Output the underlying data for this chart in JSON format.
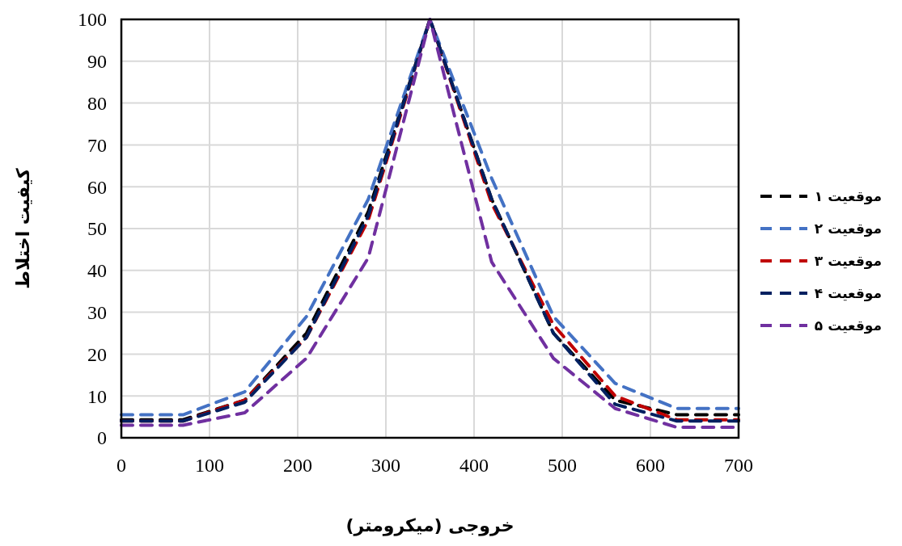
{
  "chart_data": {
    "type": "line",
    "xlabel": "خروجی (میکرومتر)",
    "ylabel": "کیفیت اختلاط",
    "x": [
      0,
      70,
      140,
      210,
      280,
      350,
      420,
      490,
      560,
      630,
      700
    ],
    "xlim": [
      0,
      700
    ],
    "xticks": [
      0,
      100,
      200,
      300,
      400,
      500,
      600,
      700
    ],
    "ylim": [
      0,
      100
    ],
    "yticks": [
      0,
      10,
      20,
      30,
      40,
      50,
      60,
      70,
      80,
      90,
      100
    ],
    "grid": true,
    "legend": "right",
    "line_style": "dashed",
    "marker": "none",
    "series": [
      {
        "name": "موقعیت ۱",
        "color": "#000000",
        "values": [
          4.3,
          4.3,
          9,
          25,
          54,
          100,
          57,
          25,
          9,
          5.5,
          5.5
        ]
      },
      {
        "name": "موقعیت ۲",
        "color": "#4472c4",
        "values": [
          5.5,
          5.5,
          11,
          29,
          57,
          100,
          62,
          29,
          13,
          7,
          7
        ]
      },
      {
        "name": "موقعیت ۳",
        "color": "#c00000",
        "values": [
          4,
          4,
          9,
          24,
          52,
          100,
          56,
          27,
          10,
          4.3,
          4.3
        ]
      },
      {
        "name": "موقعیت ۴",
        "color": "#002060",
        "values": [
          4,
          4,
          8.5,
          24,
          53,
          100,
          57,
          25,
          8,
          4,
          4
        ]
      },
      {
        "name": "موقعیت ۵",
        "color": "#7030a0",
        "values": [
          3,
          3,
          6,
          19,
          43,
          100,
          42,
          19,
          7,
          2.5,
          2.5
        ]
      }
    ]
  }
}
